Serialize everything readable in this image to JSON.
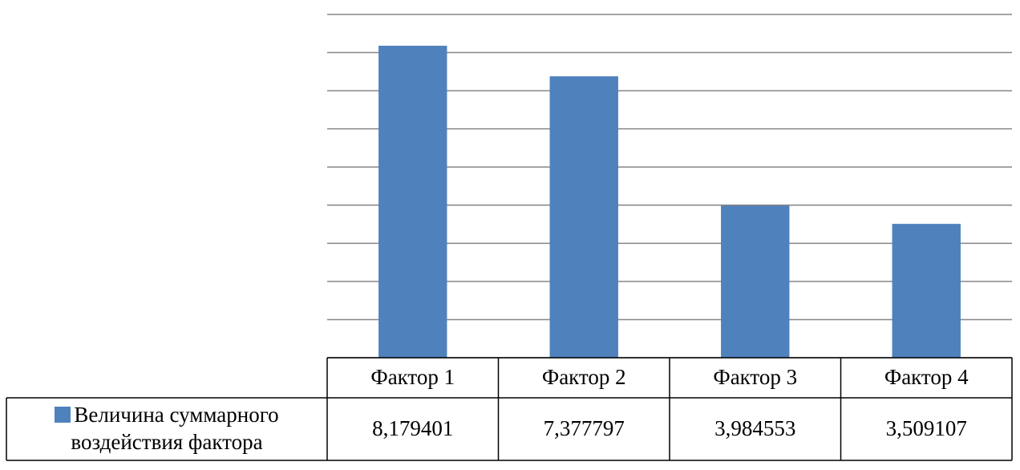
{
  "chart_data": {
    "type": "bar",
    "categories": [
      "Фактор 1",
      "Фактор 2",
      "Фактор 3",
      "Фактор 4"
    ],
    "series": [
      {
        "name": "Величина суммарного воздействия фактора",
        "color": "#4f81bd",
        "values": [
          8.179401,
          7.377797,
          3.984553,
          3.509107
        ],
        "value_labels": [
          "8,179401",
          "7,377797",
          "3,984553",
          "3,509107"
        ]
      }
    ],
    "ylim": [
      0,
      9
    ],
    "yticks": [
      0,
      1,
      2,
      3,
      4,
      5,
      6,
      7,
      8,
      9
    ],
    "grid": true,
    "data_table": true
  }
}
